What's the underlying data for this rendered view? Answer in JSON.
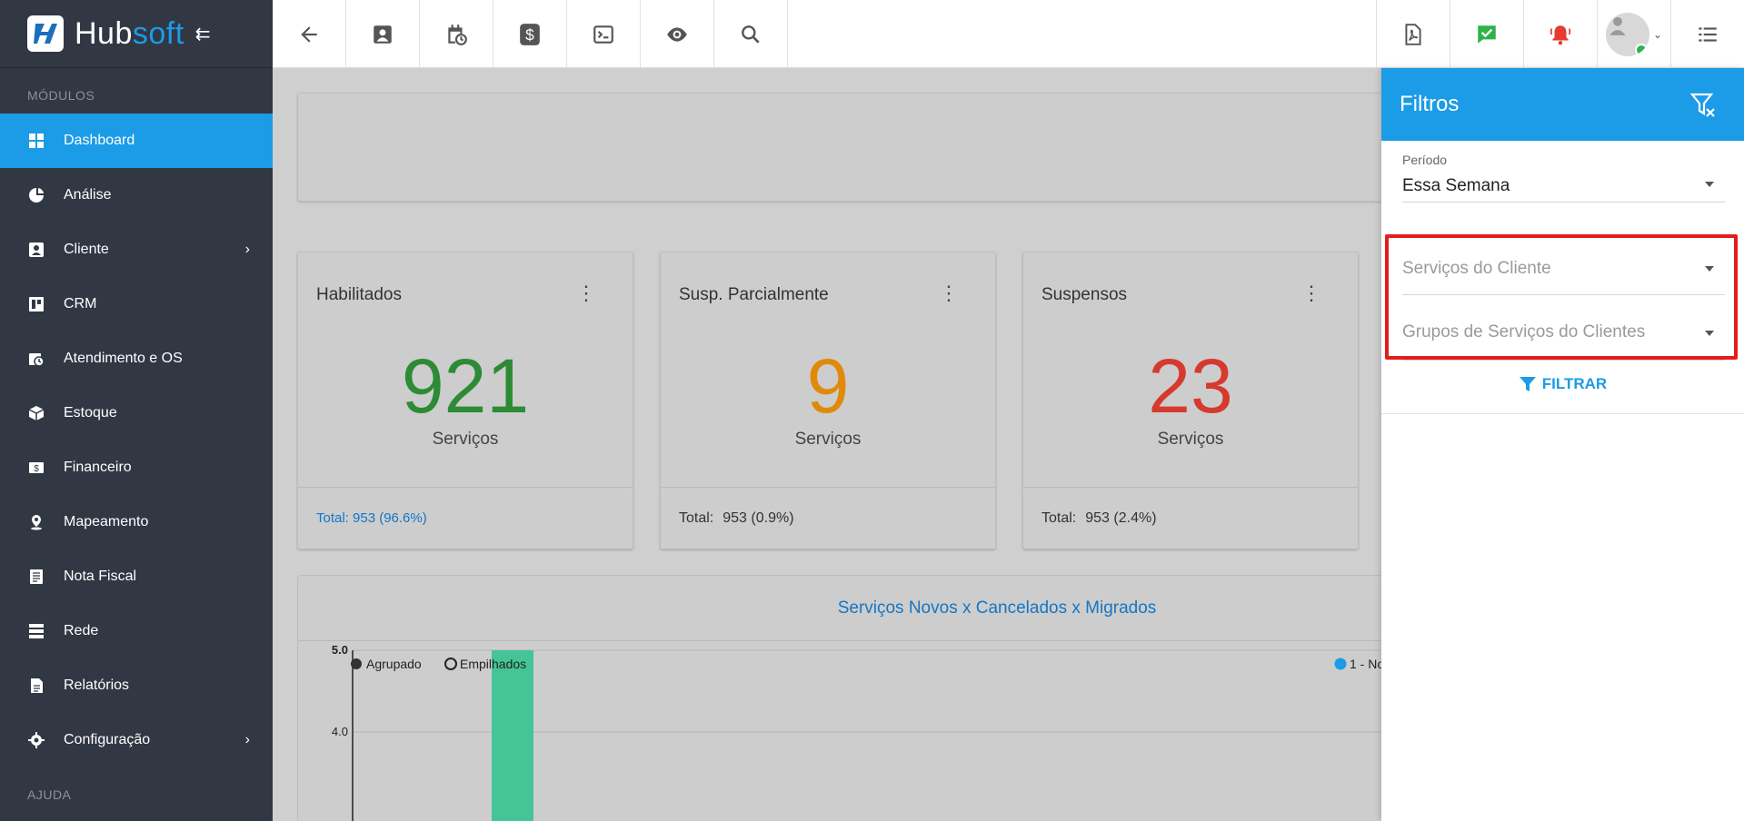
{
  "brand": {
    "name_part1": "Hub",
    "name_part2": "soft"
  },
  "sidebar": {
    "section_modules": "MÓDULOS",
    "section_help": "AJUDA",
    "items": [
      {
        "label": "Dashboard",
        "icon": "dashboard-icon",
        "active": true
      },
      {
        "label": "Análise",
        "icon": "pie-chart-icon"
      },
      {
        "label": "Cliente",
        "icon": "contact-card-icon",
        "has_children": true
      },
      {
        "label": "CRM",
        "icon": "board-icon"
      },
      {
        "label": "Atendimento e OS",
        "icon": "calendar-clock-icon"
      },
      {
        "label": "Estoque",
        "icon": "box-icon"
      },
      {
        "label": "Financeiro",
        "icon": "money-icon"
      },
      {
        "label": "Mapeamento",
        "icon": "map-pin-icon"
      },
      {
        "label": "Nota Fiscal",
        "icon": "document-icon"
      },
      {
        "label": "Rede",
        "icon": "server-icon"
      },
      {
        "label": "Relatórios",
        "icon": "report-icon"
      },
      {
        "label": "Configuração",
        "icon": "gear-icon",
        "has_children": true
      }
    ]
  },
  "cards": [
    {
      "title": "Habilitados",
      "value": "921",
      "unit": "Serviços",
      "footer_text": "Total: 953 (96.6%)",
      "color": "#2e8b35"
    },
    {
      "title": "Susp. Parcialmente",
      "value": "9",
      "unit": "Serviços",
      "footer_label": "Total:",
      "footer_value": "953 (0.9%)",
      "color": "#e08a0b"
    },
    {
      "title": "Suspensos",
      "value": "23",
      "unit": "Serviços",
      "footer_label": "Total:",
      "footer_value": "953 (2.4%)",
      "color": "#d63a2e"
    }
  ],
  "chart": {
    "title": "Serviços Novos x Cancelados x Migrados",
    "toggle_grouped": "Agrupado",
    "toggle_stacked": "Empilhados",
    "legend_partial": "1 - No"
  },
  "chart_data": {
    "type": "bar",
    "title": "Serviços Novos x Cancelados x Migrados",
    "y_ticks": [
      "5.0",
      "4.0"
    ],
    "ylim": [
      0,
      5
    ],
    "series": [
      {
        "name": "1 - No",
        "values": [
          5
        ]
      }
    ],
    "colors": {
      "bar": "#45c596",
      "legend_dot": "#1c9be6"
    }
  },
  "filters": {
    "title": "Filtros",
    "period_label": "Período",
    "period_value": "Essa Semana",
    "services_placeholder": "Serviços do Cliente",
    "groups_placeholder": "Grupos de Serviços do Clientes",
    "filter_button": "FILTRAR"
  },
  "colors": {
    "accent": "#1c9be6",
    "sidebar": "#323744",
    "highlight": "#e41c1c"
  }
}
